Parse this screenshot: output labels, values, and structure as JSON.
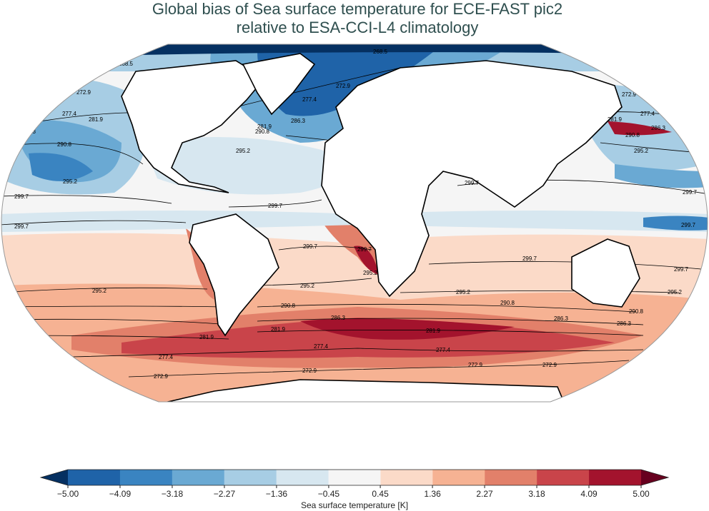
{
  "title": [
    "Global bias of Sea surface temperature for ECE-FAST pic2",
    "relative to ESA-CCI-L4 climatology"
  ],
  "contour_levels": [
    268.5,
    272.9,
    277.4,
    281.9,
    286.3,
    290.8,
    295.2,
    299.7
  ],
  "colorbar": {
    "label": "Sea surface temperature [K]",
    "lim": [
      -5,
      5
    ],
    "ticks": [
      {
        "value": -5,
        "label": "−5.00"
      },
      {
        "value": -4.09,
        "label": "−4.09"
      },
      {
        "value": -3.18,
        "label": "−3.18"
      },
      {
        "value": -2.27,
        "label": "−2.27"
      },
      {
        "value": -1.36,
        "label": "−1.36"
      },
      {
        "value": -0.45,
        "label": "−0.45"
      },
      {
        "value": 0.45,
        "label": "0.45"
      },
      {
        "value": 1.36,
        "label": "1.36"
      },
      {
        "value": 2.27,
        "label": "2.27"
      },
      {
        "value": 3.18,
        "label": "3.18"
      },
      {
        "value": 4.09,
        "label": "4.09"
      },
      {
        "value": 5,
        "label": "5.00"
      }
    ],
    "colors": [
      "#1f63a8",
      "#3a84c1",
      "#6aa9d3",
      "#a7cde4",
      "#d7e7f0",
      "#f5f5f5",
      "#fbdac8",
      "#f6b293",
      "#e2806a",
      "#c9444a",
      "#a3132d"
    ],
    "under_color": "#053061",
    "over_color": "#67001f"
  }
}
